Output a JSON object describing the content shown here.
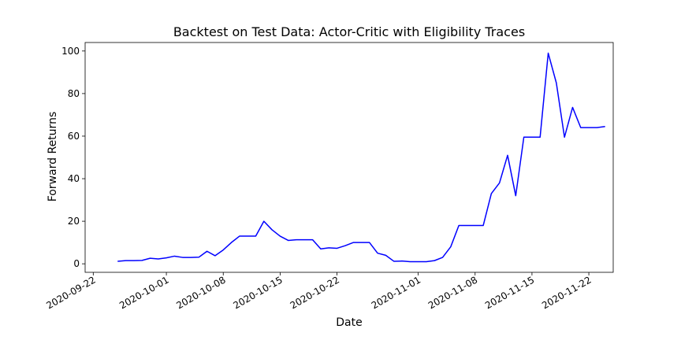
{
  "chart_data": {
    "type": "line",
    "title": "Backtest on Test Data: Actor-Critic with Eligibility Traces",
    "xlabel": "Date",
    "ylabel": "Forward Returns",
    "x_ticks": [
      "2020-09-22",
      "2020-10-01",
      "2020-10-08",
      "2020-10-15",
      "2020-10-22",
      "2020-11-01",
      "2020-11-08",
      "2020-11-15",
      "2020-11-22"
    ],
    "y_ticks": [
      0,
      20,
      40,
      60,
      80,
      100
    ],
    "xlim": [
      "2020-09-21",
      "2020-11-25"
    ],
    "ylim": [
      -4,
      104
    ],
    "grid": false,
    "series": [
      {
        "color": "#0000ff",
        "points": [
          [
            "2020-09-25",
            1.2
          ],
          [
            "2020-09-26",
            1.5
          ],
          [
            "2020-09-27",
            1.5
          ],
          [
            "2020-09-28",
            1.6
          ],
          [
            "2020-09-29",
            2.6
          ],
          [
            "2020-09-30",
            2.3
          ],
          [
            "2020-10-01",
            2.8
          ],
          [
            "2020-10-02",
            3.6
          ],
          [
            "2020-10-03",
            3.0
          ],
          [
            "2020-10-04",
            3.0
          ],
          [
            "2020-10-05",
            3.1
          ],
          [
            "2020-10-06",
            5.9
          ],
          [
            "2020-10-07",
            3.8
          ],
          [
            "2020-10-08",
            6.5
          ],
          [
            "2020-10-09",
            10.0
          ],
          [
            "2020-10-10",
            13.0
          ],
          [
            "2020-10-11",
            13.0
          ],
          [
            "2020-10-12",
            13.0
          ],
          [
            "2020-10-13",
            20.0
          ],
          [
            "2020-10-14",
            16.0
          ],
          [
            "2020-10-15",
            13.0
          ],
          [
            "2020-10-16",
            11.0
          ],
          [
            "2020-10-17",
            11.3
          ],
          [
            "2020-10-18",
            11.3
          ],
          [
            "2020-10-19",
            11.3
          ],
          [
            "2020-10-20",
            7.0
          ],
          [
            "2020-10-21",
            7.5
          ],
          [
            "2020-10-22",
            7.3
          ],
          [
            "2020-10-23",
            8.5
          ],
          [
            "2020-10-24",
            10.0
          ],
          [
            "2020-10-25",
            10.0
          ],
          [
            "2020-10-26",
            10.0
          ],
          [
            "2020-10-27",
            5.0
          ],
          [
            "2020-10-28",
            4.0
          ],
          [
            "2020-10-29",
            1.2
          ],
          [
            "2020-10-30",
            1.3
          ],
          [
            "2020-10-31",
            1.0
          ],
          [
            "2020-11-01",
            1.0
          ],
          [
            "2020-11-02",
            1.0
          ],
          [
            "2020-11-03",
            1.5
          ],
          [
            "2020-11-04",
            3.0
          ],
          [
            "2020-11-05",
            8.0
          ],
          [
            "2020-11-06",
            18.0
          ],
          [
            "2020-11-07",
            18.0
          ],
          [
            "2020-11-08",
            18.0
          ],
          [
            "2020-11-09",
            18.0
          ],
          [
            "2020-11-10",
            33.0
          ],
          [
            "2020-11-11",
            38.0
          ],
          [
            "2020-11-12",
            51.0
          ],
          [
            "2020-11-13",
            32.0
          ],
          [
            "2020-11-14",
            59.5
          ],
          [
            "2020-11-15",
            59.5
          ],
          [
            "2020-11-16",
            59.5
          ],
          [
            "2020-11-17",
            99.0
          ],
          [
            "2020-11-18",
            85.0
          ],
          [
            "2020-11-19",
            59.5
          ],
          [
            "2020-11-20",
            73.5
          ],
          [
            "2020-11-21",
            64.0
          ],
          [
            "2020-11-22",
            64.0
          ],
          [
            "2020-11-23",
            64.0
          ],
          [
            "2020-11-24",
            64.5
          ]
        ]
      }
    ]
  }
}
